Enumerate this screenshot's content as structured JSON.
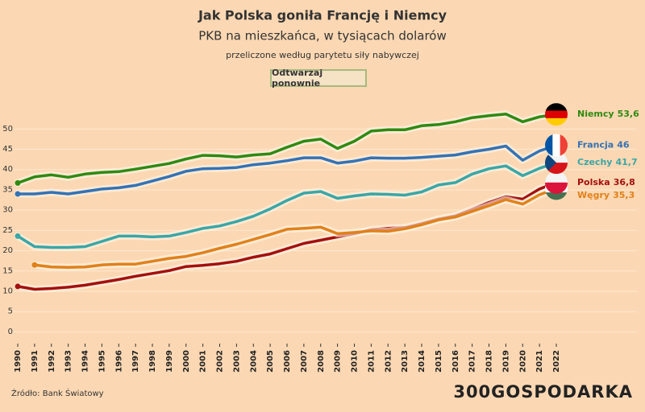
{
  "chart_data": {
    "type": "line",
    "title": "Jak Polska goniła Francję i Niemcy",
    "subtitle": "PKB na mieszkańca, w tysiącach dolarów",
    "note": "przeliczone według parytetu siły nabywczej",
    "button": "Odtwarzaj ponownie",
    "source": "Źródło: Bank Światowy",
    "logo": "300GOSPODARKA",
    "x": [
      1990,
      1991,
      1992,
      1993,
      1994,
      1995,
      1996,
      1997,
      1998,
      1999,
      2000,
      2001,
      2002,
      2003,
      2004,
      2005,
      2006,
      2007,
      2008,
      2009,
      2010,
      2011,
      2012,
      2013,
      2014,
      2015,
      2016,
      2017,
      2018,
      2019,
      2020,
      2021,
      2022
    ],
    "xlim": [
      1990,
      2022
    ],
    "ylim": [
      -2.5,
      58
    ],
    "yticks": [
      0,
      5,
      10,
      15,
      20,
      25,
      30,
      35,
      40,
      45,
      50
    ],
    "grid": true,
    "series": [
      {
        "name": "Niemcy",
        "end_label": "53,6",
        "color": "#2e8a12",
        "values": [
          36.7,
          38.2,
          38.7,
          38.1,
          38.9,
          39.3,
          39.5,
          40.1,
          40.8,
          41.5,
          42.6,
          43.5,
          43.4,
          43.1,
          43.6,
          43.9,
          45.5,
          47.0,
          47.5,
          45.2,
          47.0,
          49.5,
          49.8,
          49.8,
          50.8,
          51.1,
          51.8,
          52.8,
          53.3,
          53.7,
          51.8,
          53.0,
          53.6
        ]
      },
      {
        "name": "Francja",
        "end_label": "46",
        "color": "#3472b5",
        "values": [
          34.0,
          34.0,
          34.4,
          34.0,
          34.6,
          35.2,
          35.5,
          36.1,
          37.2,
          38.3,
          39.6,
          40.2,
          40.3,
          40.5,
          41.2,
          41.6,
          42.2,
          42.9,
          42.9,
          41.6,
          42.1,
          42.9,
          42.8,
          42.8,
          43.0,
          43.3,
          43.6,
          44.4,
          45.0,
          45.8,
          42.3,
          44.6,
          46.0
        ]
      },
      {
        "name": "Czechy",
        "end_label": "41,7",
        "color": "#3aa6a6",
        "values": [
          23.6,
          21.0,
          20.8,
          20.8,
          21.0,
          22.3,
          23.6,
          23.6,
          23.4,
          23.6,
          24.5,
          25.5,
          26.1,
          27.2,
          28.5,
          30.3,
          32.4,
          34.2,
          34.6,
          32.9,
          33.5,
          34.0,
          33.9,
          33.7,
          34.5,
          36.2,
          36.8,
          38.9,
          40.2,
          40.9,
          38.5,
          40.3,
          41.7
        ]
      },
      {
        "name": "Polska",
        "end_label": "36,8",
        "color": "#a3100f",
        "values": [
          11.2,
          10.5,
          10.7,
          11.0,
          11.5,
          12.2,
          12.9,
          13.7,
          14.4,
          15.1,
          16.1,
          16.4,
          16.8,
          17.4,
          18.4,
          19.2,
          20.5,
          21.8,
          22.6,
          23.4,
          24.2,
          25.2,
          25.5,
          25.7,
          26.7,
          27.8,
          28.6,
          30.2,
          31.9,
          33.3,
          32.7,
          35.2,
          36.8
        ]
      },
      {
        "name": "Węgry",
        "end_label": "35,3",
        "color": "#e0811a",
        "values": [
          null,
          16.5,
          16.0,
          15.9,
          16.0,
          16.5,
          16.7,
          16.7,
          17.4,
          18.1,
          18.6,
          19.5,
          20.6,
          21.6,
          22.8,
          24.0,
          25.3,
          25.5,
          25.8,
          24.2,
          24.5,
          24.9,
          24.8,
          25.4,
          26.4,
          27.6,
          28.3,
          29.7,
          31.1,
          32.6,
          31.5,
          33.8,
          35.3
        ]
      }
    ]
  }
}
